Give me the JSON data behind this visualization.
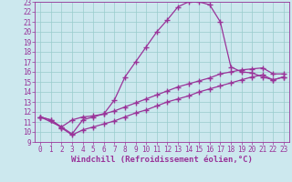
{
  "xlabel": "Windchill (Refroidissement éolien,°C)",
  "bg_color": "#cce8ee",
  "line_color": "#993399",
  "grid_color": "#99cccc",
  "xlim": [
    -0.5,
    23.5
  ],
  "ylim": [
    9,
    23
  ],
  "xticks": [
    0,
    1,
    2,
    3,
    4,
    5,
    6,
    7,
    8,
    9,
    10,
    11,
    12,
    13,
    14,
    15,
    16,
    17,
    18,
    19,
    20,
    21,
    22,
    23
  ],
  "yticks": [
    9,
    10,
    11,
    12,
    13,
    14,
    15,
    16,
    17,
    18,
    19,
    20,
    21,
    22,
    23
  ],
  "curve1_x": [
    0,
    1,
    2,
    3,
    4,
    5,
    6,
    7,
    8,
    9,
    10,
    11,
    12,
    13,
    14,
    15,
    16,
    17,
    18,
    19,
    20,
    21,
    22,
    23
  ],
  "curve1_y": [
    11.5,
    11.2,
    10.5,
    9.8,
    11.2,
    11.5,
    11.8,
    13.2,
    15.5,
    17.0,
    18.5,
    20.0,
    21.2,
    22.5,
    23.0,
    23.0,
    22.7,
    21.0,
    16.5,
    16.0,
    15.9,
    15.5,
    15.2,
    15.5
  ],
  "curve2_x": [
    0,
    2,
    3,
    4,
    5,
    6,
    7,
    8,
    9,
    10,
    11,
    12,
    13,
    14,
    15,
    16,
    17,
    18,
    19,
    20,
    21,
    22,
    23
  ],
  "curve2_y": [
    11.5,
    10.5,
    11.2,
    11.5,
    11.6,
    11.8,
    12.1,
    12.5,
    12.9,
    13.3,
    13.7,
    14.1,
    14.5,
    14.8,
    15.1,
    15.4,
    15.8,
    16.0,
    16.2,
    16.3,
    16.4,
    15.8,
    15.8
  ],
  "curve3_x": [
    0,
    1,
    2,
    3,
    4,
    5,
    6,
    7,
    8,
    9,
    10,
    11,
    12,
    13,
    14,
    15,
    16,
    17,
    18,
    19,
    20,
    21,
    22,
    23
  ],
  "curve3_y": [
    11.5,
    11.2,
    10.4,
    9.7,
    10.2,
    10.5,
    10.8,
    11.1,
    11.5,
    11.9,
    12.2,
    12.6,
    13.0,
    13.3,
    13.6,
    14.0,
    14.3,
    14.6,
    14.9,
    15.2,
    15.5,
    15.7,
    15.2,
    15.5
  ],
  "marker": "+",
  "markersize": 4,
  "linewidth": 0.9,
  "xlabel_fontsize": 6.5,
  "tick_fontsize": 5.5
}
